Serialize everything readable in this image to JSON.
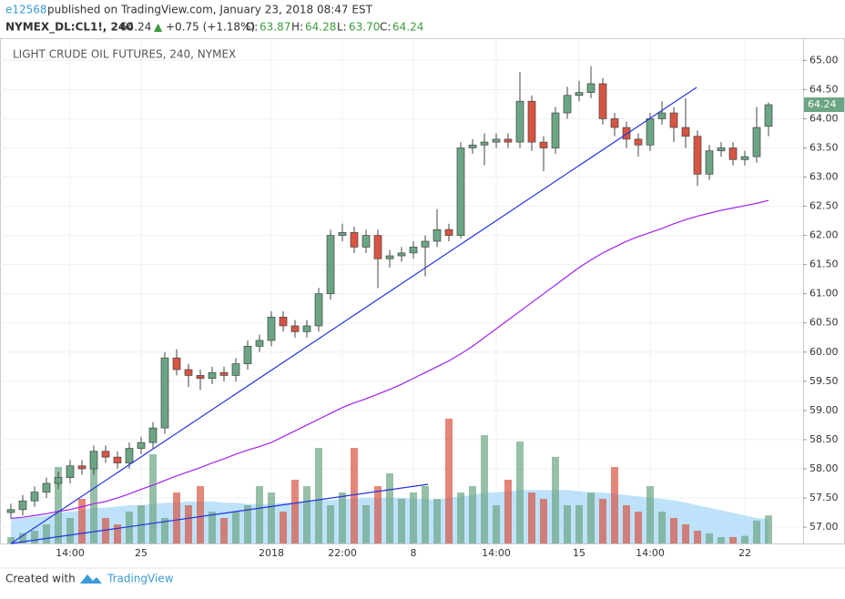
{
  "header": {
    "user": "e12568",
    "published": "published on TradingView.com, January 23, 2018 08:47 EST",
    "symbol": "NYMEX_DL:CL1!, 240",
    "last": "64.24",
    "arrow": "▲",
    "change": "+0.75 (+1.18%)",
    "open_label": "O:",
    "open": "63.87",
    "high_label": "H:",
    "high": "64.28",
    "low_label": "L:",
    "low": "63.70",
    "close_label": "C:",
    "close": "64.24"
  },
  "chart_data": {
    "type": "candlestick",
    "title": "LIGHT CRUDE OIL FUTURES, 240, NYMEX",
    "categories": [
      null,
      null,
      null,
      null,
      null,
      "14:00",
      null,
      null,
      null,
      null,
      null,
      "25",
      null,
      null,
      null,
      null,
      null,
      null,
      null,
      null,
      null,
      null,
      "2018",
      null,
      null,
      null,
      null,
      null,
      "22:00",
      null,
      null,
      null,
      null,
      null,
      "8",
      null,
      null,
      null,
      null,
      null,
      null,
      "14:00",
      null,
      null,
      null,
      null,
      null,
      null,
      "15",
      null,
      null,
      null,
      null,
      null,
      "14:00",
      null,
      null,
      null,
      null,
      null,
      null,
      null,
      "22",
      null,
      null
    ],
    "open": [
      57.25,
      57.3,
      57.45,
      57.6,
      57.75,
      57.85,
      58.05,
      58.0,
      58.3,
      58.2,
      58.1,
      58.35,
      58.45,
      58.7,
      59.9,
      59.7,
      59.6,
      59.55,
      59.65,
      59.6,
      59.8,
      60.1,
      60.2,
      60.6,
      60.45,
      60.35,
      60.45,
      61.0,
      62.0,
      62.05,
      61.8,
      62.0,
      61.6,
      61.65,
      61.7,
      61.8,
      61.9,
      62.1,
      62.0,
      63.5,
      63.55,
      63.6,
      63.65,
      63.6,
      64.3,
      63.6,
      63.5,
      64.1,
      64.4,
      64.45,
      64.6,
      64.0,
      63.85,
      63.65,
      63.55,
      64.0,
      64.1,
      63.85,
      63.7,
      63.05,
      63.45,
      63.5,
      63.3,
      63.35,
      63.87
    ],
    "high": [
      57.4,
      57.55,
      57.7,
      57.85,
      57.95,
      58.15,
      58.15,
      58.4,
      58.4,
      58.3,
      58.45,
      58.55,
      58.8,
      60.0,
      60.05,
      59.8,
      59.7,
      59.75,
      59.75,
      59.9,
      60.2,
      60.3,
      60.7,
      60.7,
      60.55,
      60.55,
      61.1,
      62.1,
      62.2,
      62.15,
      62.1,
      62.1,
      61.75,
      61.8,
      61.9,
      62.0,
      62.45,
      62.2,
      63.6,
      63.65,
      63.75,
      63.75,
      63.75,
      64.8,
      64.4,
      63.7,
      64.2,
      64.55,
      64.65,
      64.9,
      64.7,
      64.1,
      63.95,
      63.75,
      64.1,
      64.3,
      64.2,
      64.35,
      63.8,
      63.55,
      63.6,
      63.6,
      63.45,
      64.2,
      64.28
    ],
    "low": [
      57.15,
      57.2,
      57.35,
      57.5,
      57.65,
      57.75,
      57.9,
      57.9,
      58.1,
      58.0,
      58.0,
      58.25,
      58.35,
      58.6,
      59.6,
      59.4,
      59.35,
      59.45,
      59.5,
      59.5,
      59.7,
      60.0,
      60.1,
      60.35,
      60.25,
      60.25,
      60.35,
      60.9,
      61.9,
      61.7,
      61.7,
      61.1,
      61.45,
      61.55,
      61.6,
      61.3,
      61.8,
      61.9,
      61.95,
      63.4,
      63.2,
      63.5,
      63.5,
      63.5,
      63.45,
      63.1,
      63.4,
      64.0,
      64.3,
      64.35,
      63.9,
      63.7,
      63.5,
      63.35,
      63.45,
      63.9,
      63.6,
      63.5,
      62.85,
      62.95,
      63.35,
      63.2,
      63.2,
      63.25,
      63.7
    ],
    "close": [
      57.3,
      57.45,
      57.6,
      57.75,
      57.85,
      58.05,
      58.0,
      58.3,
      58.2,
      58.1,
      58.35,
      58.45,
      58.7,
      59.9,
      59.7,
      59.6,
      59.55,
      59.65,
      59.6,
      59.8,
      60.1,
      60.2,
      60.6,
      60.45,
      60.35,
      60.45,
      61.0,
      62.0,
      62.05,
      61.8,
      62.0,
      61.6,
      61.65,
      61.7,
      61.8,
      61.9,
      62.1,
      62.0,
      63.5,
      63.55,
      63.6,
      63.65,
      63.6,
      64.3,
      63.6,
      63.5,
      64.1,
      64.4,
      64.45,
      64.6,
      64.0,
      63.85,
      63.65,
      63.55,
      64.0,
      64.1,
      63.85,
      63.7,
      63.05,
      63.45,
      63.5,
      63.3,
      63.35,
      63.85,
      64.24
    ],
    "ma": [
      57.15,
      57.17,
      57.2,
      57.23,
      57.27,
      57.3,
      57.35,
      57.4,
      57.44,
      57.5,
      57.57,
      57.65,
      57.72,
      57.8,
      57.88,
      57.95,
      58.02,
      58.1,
      58.17,
      58.25,
      58.32,
      58.38,
      58.45,
      58.55,
      58.65,
      58.75,
      58.85,
      58.95,
      59.05,
      59.13,
      59.2,
      59.28,
      59.36,
      59.45,
      59.55,
      59.65,
      59.75,
      59.85,
      59.97,
      60.1,
      60.25,
      60.4,
      60.55,
      60.7,
      60.85,
      61.0,
      61.15,
      61.3,
      61.45,
      61.58,
      61.7,
      61.8,
      61.9,
      61.98,
      62.05,
      62.12,
      62.2,
      62.27,
      62.33,
      62.38,
      62.43,
      62.47,
      62.51,
      62.55,
      62.6
    ],
    "volume": [
      5,
      8,
      10,
      15,
      60,
      20,
      35,
      70,
      20,
      15,
      25,
      30,
      70,
      20,
      40,
      30,
      45,
      25,
      20,
      25,
      30,
      45,
      40,
      25,
      50,
      45,
      75,
      30,
      40,
      75,
      30,
      45,
      55,
      35,
      40,
      45,
      35,
      98,
      40,
      45,
      85,
      30,
      50,
      80,
      40,
      35,
      68,
      30,
      30,
      40,
      35,
      60,
      30,
      25,
      45,
      25,
      20,
      15,
      10,
      8,
      5,
      5,
      6,
      18,
      22
    ],
    "volume_ma": [
      20,
      20,
      21,
      22,
      24,
      25,
      26,
      28,
      28,
      29,
      30,
      30,
      31,
      32,
      32,
      33,
      33,
      33,
      32,
      32,
      31,
      31,
      31,
      32,
      32,
      33,
      34,
      34,
      35,
      35,
      36,
      36,
      36,
      36,
      35,
      35,
      34,
      36,
      37,
      38,
      40,
      40,
      41,
      42,
      42,
      42,
      42,
      42,
      41,
      40,
      40,
      39,
      38,
      37,
      36,
      35,
      34,
      32,
      30,
      28,
      26,
      24,
      22,
      20,
      19
    ],
    "ylim": [
      56.72,
      65.38
    ],
    "yticks": [
      {
        "value": 57,
        "label": "57.00"
      },
      {
        "value": 57.5,
        "label": "57.50"
      },
      {
        "value": 58,
        "label": "58.00"
      },
      {
        "value": 58.5,
        "label": "58.50"
      },
      {
        "value": 59,
        "label": "59.00"
      },
      {
        "value": 59.5,
        "label": "59.50"
      },
      {
        "value": 60,
        "label": "60.00"
      },
      {
        "value": 60.5,
        "label": "60.50"
      },
      {
        "value": 61,
        "label": "61.00"
      },
      {
        "value": 61.5,
        "label": "61.50"
      },
      {
        "value": 62,
        "label": "62.00"
      },
      {
        "value": 62.5,
        "label": "62.50"
      },
      {
        "value": 63,
        "label": "63.00"
      },
      {
        "value": 63.5,
        "label": "63.50"
      },
      {
        "value": 64,
        "label": "64.00"
      },
      {
        "value": 64.5,
        "label": "64.50"
      },
      {
        "value": 65,
        "label": "65.00"
      }
    ],
    "up_color": "#6ba583",
    "down_color": "#d75442",
    "ma_color": "#a020f0",
    "volume_ma_color": "#a8d8f8",
    "grid": true
  },
  "footer": {
    "created": "Created with",
    "brand": "TradingView"
  }
}
